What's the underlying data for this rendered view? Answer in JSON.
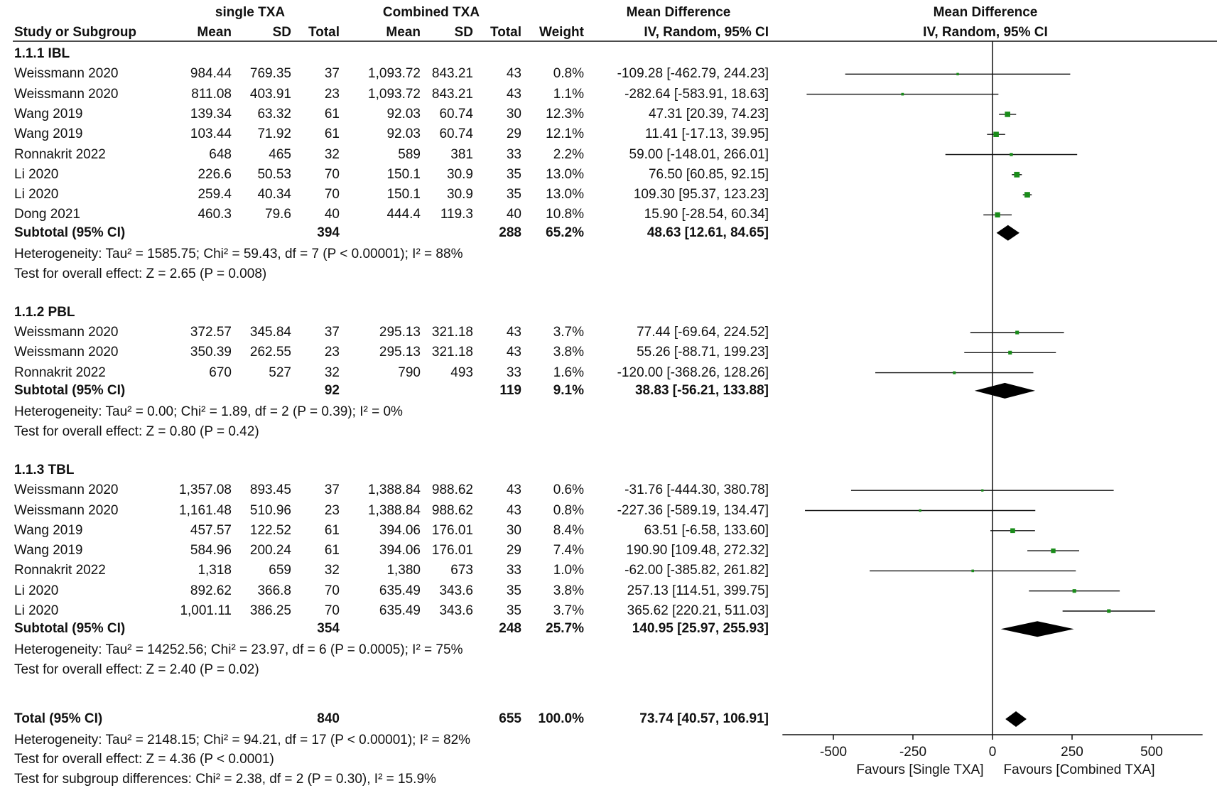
{
  "headers": {
    "group1": "single TXA",
    "group2": "Combined TXA",
    "effect": "Mean Difference",
    "col_study": "Study or Subgroup",
    "col_mean1": "Mean",
    "col_sd1": "SD",
    "col_total1": "Total",
    "col_mean2": "Mean",
    "col_sd2": "SD",
    "col_total2": "Total",
    "col_weight": "Weight",
    "col_ci": "IV, Random, 95% CI",
    "plot_title": "Mean Difference",
    "plot_sub": "IV, Random, 95% CI"
  },
  "subgroups": [
    {
      "title": "1.1.1 IBL",
      "studies": [
        {
          "name": "Weissmann 2020",
          "m1": "984.44",
          "sd1": "769.35",
          "n1": "37",
          "m2": "1,093.72",
          "sd2": "843.21",
          "n2": "43",
          "w": "0.8%",
          "ci": "-109.28 [-462.79, 244.23]",
          "md": -109.28,
          "lo": -462.79,
          "hi": 244.23
        },
        {
          "name": "Weissmann 2020",
          "m1": "811.08",
          "sd1": "403.91",
          "n1": "23",
          "m2": "1,093.72",
          "sd2": "843.21",
          "n2": "43",
          "w": "1.1%",
          "ci": "-282.64 [-583.91, 18.63]",
          "md": -282.64,
          "lo": -583.91,
          "hi": 18.63
        },
        {
          "name": "Wang 2019",
          "m1": "139.34",
          "sd1": "63.32",
          "n1": "61",
          "m2": "92.03",
          "sd2": "60.74",
          "n2": "30",
          "w": "12.3%",
          "ci": "47.31 [20.39, 74.23]",
          "md": 47.31,
          "lo": 20.39,
          "hi": 74.23
        },
        {
          "name": "Wang 2019",
          "m1": "103.44",
          "sd1": "71.92",
          "n1": "61",
          "m2": "92.03",
          "sd2": "60.74",
          "n2": "29",
          "w": "12.1%",
          "ci": "11.41 [-17.13, 39.95]",
          "md": 11.41,
          "lo": -17.13,
          "hi": 39.95
        },
        {
          "name": "Ronnakrit 2022",
          "m1": "648",
          "sd1": "465",
          "n1": "32",
          "m2": "589",
          "sd2": "381",
          "n2": "33",
          "w": "2.2%",
          "ci": "59.00 [-148.01, 266.01]",
          "md": 59.0,
          "lo": -148.01,
          "hi": 266.01
        },
        {
          "name": "Li 2020",
          "m1": "226.6",
          "sd1": "50.53",
          "n1": "70",
          "m2": "150.1",
          "sd2": "30.9",
          "n2": "35",
          "w": "13.0%",
          "ci": "76.50 [60.85, 92.15]",
          "md": 76.5,
          "lo": 60.85,
          "hi": 92.15
        },
        {
          "name": "Li 2020",
          "m1": "259.4",
          "sd1": "40.34",
          "n1": "70",
          "m2": "150.1",
          "sd2": "30.9",
          "n2": "35",
          "w": "13.0%",
          "ci": "109.30 [95.37, 123.23]",
          "md": 109.3,
          "lo": 95.37,
          "hi": 123.23
        },
        {
          "name": "Dong 2021",
          "m1": "460.3",
          "sd1": "79.6",
          "n1": "40",
          "m2": "444.4",
          "sd2": "119.3",
          "n2": "40",
          "w": "10.8%",
          "ci": "15.90 [-28.54, 60.34]",
          "md": 15.9,
          "lo": -28.54,
          "hi": 60.34
        }
      ],
      "subtotal": {
        "label": "Subtotal (95% CI)",
        "n1": "394",
        "n2": "288",
        "w": "65.2%",
        "ci": "48.63 [12.61, 84.65]",
        "md": 48.63,
        "lo": 12.61,
        "hi": 84.65
      },
      "heterogeneity": "Heterogeneity: Tau² = 1585.75; Chi² = 59.43, df = 7 (P < 0.00001); I² = 88%",
      "overall": "Test for overall effect: Z = 2.65 (P = 0.008)"
    },
    {
      "title": "1.1.2 PBL",
      "studies": [
        {
          "name": "Weissmann 2020",
          "m1": "372.57",
          "sd1": "345.84",
          "n1": "37",
          "m2": "295.13",
          "sd2": "321.18",
          "n2": "43",
          "w": "3.7%",
          "ci": "77.44 [-69.64, 224.52]",
          "md": 77.44,
          "lo": -69.64,
          "hi": 224.52
        },
        {
          "name": "Weissmann 2020",
          "m1": "350.39",
          "sd1": "262.55",
          "n1": "23",
          "m2": "295.13",
          "sd2": "321.18",
          "n2": "43",
          "w": "3.8%",
          "ci": "55.26 [-88.71, 199.23]",
          "md": 55.26,
          "lo": -88.71,
          "hi": 199.23
        },
        {
          "name": "Ronnakrit 2022",
          "m1": "670",
          "sd1": "527",
          "n1": "32",
          "m2": "790",
          "sd2": "493",
          "n2": "33",
          "w": "1.6%",
          "ci": "-120.00 [-368.26, 128.26]",
          "md": -120.0,
          "lo": -368.26,
          "hi": 128.26
        }
      ],
      "subtotal": {
        "label": "Subtotal (95% CI)",
        "n1": "92",
        "n2": "119",
        "w": "9.1%",
        "ci": "38.83 [-56.21, 133.88]",
        "md": 38.83,
        "lo": -56.21,
        "hi": 133.88
      },
      "heterogeneity": "Heterogeneity: Tau² = 0.00; Chi² = 1.89, df = 2 (P = 0.39); I² = 0%",
      "overall": "Test for overall effect: Z = 0.80 (P = 0.42)"
    },
    {
      "title": "1.1.3 TBL",
      "studies": [
        {
          "name": "Weissmann 2020",
          "m1": "1,357.08",
          "sd1": "893.45",
          "n1": "37",
          "m2": "1,388.84",
          "sd2": "988.62",
          "n2": "43",
          "w": "0.6%",
          "ci": "-31.76 [-444.30, 380.78]",
          "md": -31.76,
          "lo": -444.3,
          "hi": 380.78
        },
        {
          "name": "Weissmann 2020",
          "m1": "1,161.48",
          "sd1": "510.96",
          "n1": "23",
          "m2": "1,388.84",
          "sd2": "988.62",
          "n2": "43",
          "w": "0.8%",
          "ci": "-227.36 [-589.19, 134.47]",
          "md": -227.36,
          "lo": -589.19,
          "hi": 134.47
        },
        {
          "name": "Wang 2019",
          "m1": "457.57",
          "sd1": "122.52",
          "n1": "61",
          "m2": "394.06",
          "sd2": "176.01",
          "n2": "30",
          "w": "8.4%",
          "ci": "63.51 [-6.58, 133.60]",
          "md": 63.51,
          "lo": -6.58,
          "hi": 133.6
        },
        {
          "name": "Wang 2019",
          "m1": "584.96",
          "sd1": "200.24",
          "n1": "61",
          "m2": "394.06",
          "sd2": "176.01",
          "n2": "29",
          "w": "7.4%",
          "ci": "190.90 [109.48, 272.32]",
          "md": 190.9,
          "lo": 109.48,
          "hi": 272.32
        },
        {
          "name": "Ronnakrit 2022",
          "m1": "1,318",
          "sd1": "659",
          "n1": "32",
          "m2": "1,380",
          "sd2": "673",
          "n2": "33",
          "w": "1.0%",
          "ci": "-62.00 [-385.82, 261.82]",
          "md": -62.0,
          "lo": -385.82,
          "hi": 261.82
        },
        {
          "name": "Li 2020",
          "m1": "892.62",
          "sd1": "366.8",
          "n1": "70",
          "m2": "635.49",
          "sd2": "343.6",
          "n2": "35",
          "w": "3.8%",
          "ci": "257.13 [114.51, 399.75]",
          "md": 257.13,
          "lo": 114.51,
          "hi": 399.75
        },
        {
          "name": "Li 2020",
          "m1": "1,001.11",
          "sd1": "386.25",
          "n1": "70",
          "m2": "635.49",
          "sd2": "343.6",
          "n2": "35",
          "w": "3.7%",
          "ci": "365.62 [220.21, 511.03]",
          "md": 365.62,
          "lo": 220.21,
          "hi": 511.03
        }
      ],
      "subtotal": {
        "label": "Subtotal (95% CI)",
        "n1": "354",
        "n2": "248",
        "w": "25.7%",
        "ci": "140.95 [25.97, 255.93]",
        "md": 140.95,
        "lo": 25.97,
        "hi": 255.93
      },
      "heterogeneity": "Heterogeneity: Tau² = 14252.56; Chi² = 23.97, df = 6 (P = 0.0005); I² = 75%",
      "overall": "Test for overall effect: Z = 2.40 (P = 0.02)"
    }
  ],
  "total": {
    "label": "Total (95% CI)",
    "n1": "840",
    "n2": "655",
    "w": "100.0%",
    "ci": "73.74 [40.57, 106.91]",
    "md": 73.74,
    "lo": 40.57,
    "hi": 106.91,
    "heterogeneity": "Heterogeneity: Tau² = 2148.15; Chi² = 94.21, df = 17 (P < 0.00001); I² = 82%",
    "overall": "Test for overall effect: Z = 4.36 (P < 0.0001)",
    "subgroup_diff": "Test for subgroup differences: Chi² = 2.38, df = 2 (P = 0.30), I² = 15.9%"
  },
  "chart_data": {
    "type": "forest",
    "xlim": [
      -660,
      660
    ],
    "xticks": [
      -500,
      -250,
      0,
      250,
      500
    ],
    "xtick_labels": [
      "-500",
      "-250",
      "0",
      "250",
      "500"
    ],
    "favours_left": "Favours [Single TXA]",
    "favours_right": "Favours [Combined TXA]",
    "marker_color": "#1a8c1a",
    "diamond_color": "#000000"
  }
}
